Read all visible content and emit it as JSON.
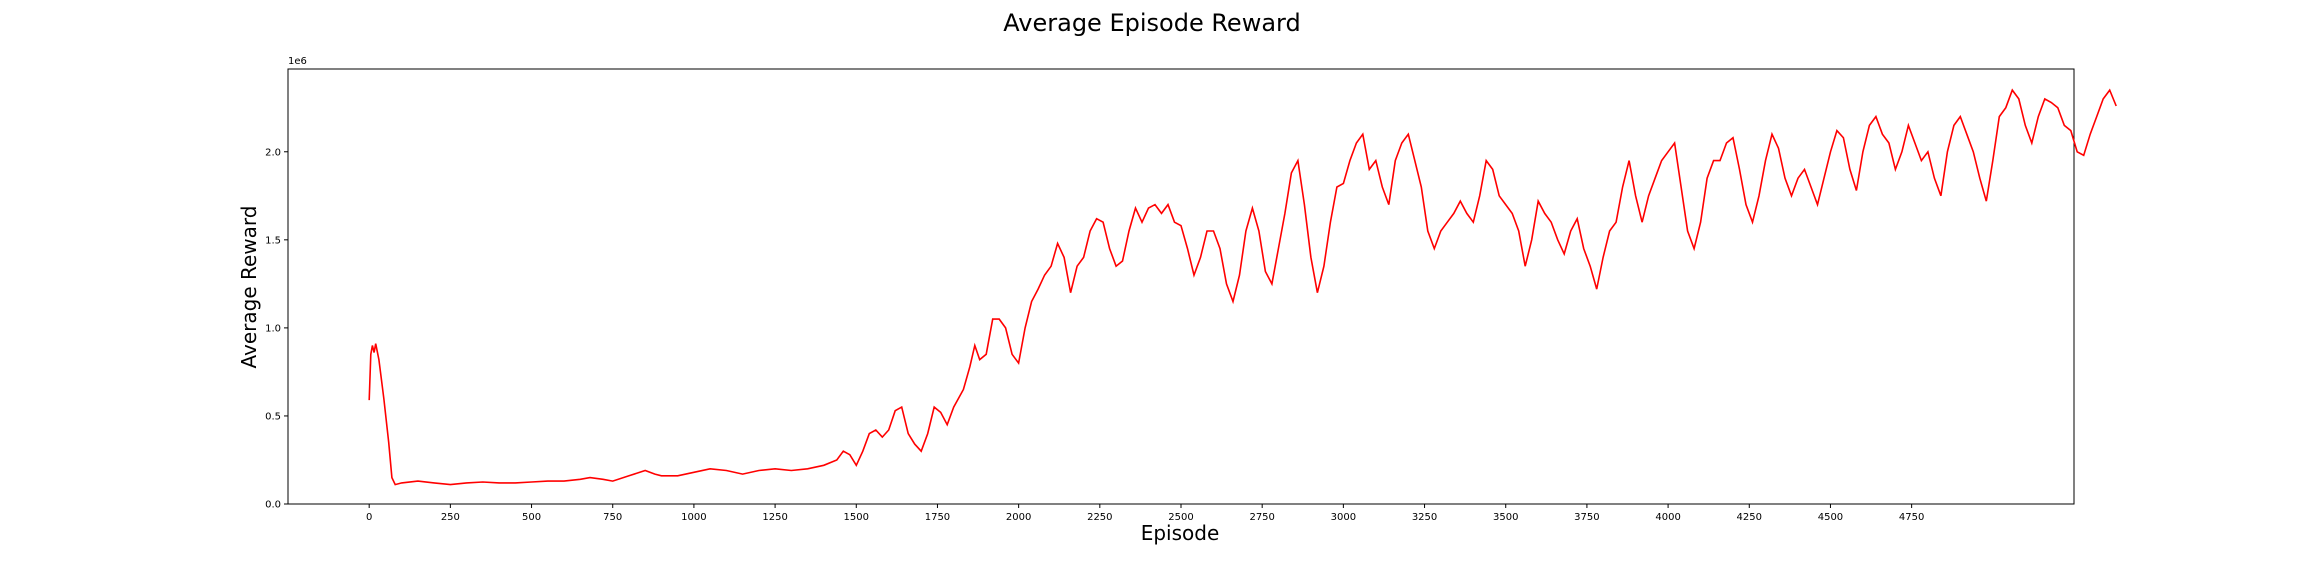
{
  "chart_data": {
    "type": "line",
    "title": "Average Episode Reward",
    "xlabel": "Episode",
    "ylabel": "Average Reward",
    "y_offset_label": "1e6",
    "xlim": [
      -250,
      5250
    ],
    "ylim": [
      0,
      2.47
    ],
    "y_scale_note": "values in units of 1e6",
    "x_ticks": [
      0,
      250,
      500,
      750,
      1000,
      1250,
      1500,
      1750,
      2000,
      2250,
      2500,
      2750,
      3000,
      3250,
      3500,
      3750,
      4000,
      4250,
      4500,
      4750
    ],
    "x_tick_labels": [
      "0",
      "250",
      "500",
      "750",
      "1000",
      "1250",
      "1500",
      "1750",
      "2000",
      "2250",
      "2500",
      "2750",
      "3000",
      "3250",
      "3500",
      "3750",
      "4000",
      "4250",
      "4500",
      "4750"
    ],
    "y_ticks": [
      0,
      0.5,
      1.0,
      1.5,
      2.0
    ],
    "y_tick_labels": [
      "0.0",
      "0.5",
      "1.0",
      "1.5",
      "2.0"
    ],
    "grid": false,
    "series": [
      {
        "color": "#ff0000",
        "points": [
          [
            0,
            0.59
          ],
          [
            5,
            0.85
          ],
          [
            10,
            0.9
          ],
          [
            15,
            0.86
          ],
          [
            20,
            0.91
          ],
          [
            30,
            0.82
          ],
          [
            45,
            0.6
          ],
          [
            60,
            0.35
          ],
          [
            70,
            0.15
          ],
          [
            80,
            0.11
          ],
          [
            100,
            0.12
          ],
          [
            150,
            0.13
          ],
          [
            200,
            0.12
          ],
          [
            250,
            0.11
          ],
          [
            300,
            0.12
          ],
          [
            350,
            0.125
          ],
          [
            400,
            0.12
          ],
          [
            450,
            0.12
          ],
          [
            500,
            0.125
          ],
          [
            550,
            0.13
          ],
          [
            600,
            0.13
          ],
          [
            650,
            0.14
          ],
          [
            680,
            0.15
          ],
          [
            720,
            0.14
          ],
          [
            750,
            0.13
          ],
          [
            800,
            0.16
          ],
          [
            850,
            0.19
          ],
          [
            880,
            0.17
          ],
          [
            900,
            0.16
          ],
          [
            950,
            0.16
          ],
          [
            1000,
            0.18
          ],
          [
            1050,
            0.2
          ],
          [
            1100,
            0.19
          ],
          [
            1150,
            0.17
          ],
          [
            1200,
            0.19
          ],
          [
            1250,
            0.2
          ],
          [
            1300,
            0.19
          ],
          [
            1350,
            0.2
          ],
          [
            1400,
            0.22
          ],
          [
            1440,
            0.25
          ],
          [
            1460,
            0.3
          ],
          [
            1480,
            0.28
          ],
          [
            1500,
            0.22
          ],
          [
            1520,
            0.3
          ],
          [
            1540,
            0.4
          ],
          [
            1560,
            0.42
          ],
          [
            1580,
            0.38
          ],
          [
            1600,
            0.42
          ],
          [
            1620,
            0.53
          ],
          [
            1640,
            0.55
          ],
          [
            1660,
            0.4
          ],
          [
            1680,
            0.34
          ],
          [
            1700,
            0.3
          ],
          [
            1720,
            0.4
          ],
          [
            1740,
            0.55
          ],
          [
            1760,
            0.52
          ],
          [
            1780,
            0.45
          ],
          [
            1800,
            0.55
          ],
          [
            1830,
            0.65
          ],
          [
            1850,
            0.78
          ],
          [
            1865,
            0.9
          ],
          [
            1880,
            0.82
          ],
          [
            1900,
            0.85
          ],
          [
            1920,
            1.05
          ],
          [
            1940,
            1.05
          ],
          [
            1960,
            1.0
          ],
          [
            1980,
            0.85
          ],
          [
            2000,
            0.8
          ],
          [
            2020,
            1.0
          ],
          [
            2040,
            1.15
          ],
          [
            2060,
            1.22
          ],
          [
            2080,
            1.3
          ],
          [
            2100,
            1.35
          ],
          [
            2120,
            1.48
          ],
          [
            2140,
            1.4
          ],
          [
            2160,
            1.2
          ],
          [
            2180,
            1.35
          ],
          [
            2200,
            1.4
          ],
          [
            2220,
            1.55
          ],
          [
            2240,
            1.62
          ],
          [
            2260,
            1.6
          ],
          [
            2280,
            1.45
          ],
          [
            2300,
            1.35
          ],
          [
            2320,
            1.38
          ],
          [
            2340,
            1.55
          ],
          [
            2360,
            1.68
          ],
          [
            2380,
            1.6
          ],
          [
            2400,
            1.68
          ],
          [
            2420,
            1.7
          ],
          [
            2440,
            1.65
          ],
          [
            2460,
            1.7
          ],
          [
            2480,
            1.6
          ],
          [
            2500,
            1.58
          ],
          [
            2520,
            1.45
          ],
          [
            2540,
            1.3
          ],
          [
            2560,
            1.4
          ],
          [
            2580,
            1.55
          ],
          [
            2600,
            1.55
          ],
          [
            2620,
            1.45
          ],
          [
            2640,
            1.25
          ],
          [
            2660,
            1.15
          ],
          [
            2680,
            1.3
          ],
          [
            2700,
            1.55
          ],
          [
            2720,
            1.68
          ],
          [
            2740,
            1.55
          ],
          [
            2760,
            1.32
          ],
          [
            2780,
            1.25
          ],
          [
            2800,
            1.45
          ],
          [
            2820,
            1.65
          ],
          [
            2840,
            1.88
          ],
          [
            2860,
            1.95
          ],
          [
            2880,
            1.7
          ],
          [
            2900,
            1.4
          ],
          [
            2920,
            1.2
          ],
          [
            2940,
            1.35
          ],
          [
            2960,
            1.6
          ],
          [
            2980,
            1.8
          ],
          [
            3000,
            1.82
          ],
          [
            3020,
            1.95
          ],
          [
            3040,
            2.05
          ],
          [
            3060,
            2.1
          ],
          [
            3080,
            1.9
          ],
          [
            3100,
            1.95
          ],
          [
            3120,
            1.8
          ],
          [
            3140,
            1.7
          ],
          [
            3160,
            1.95
          ],
          [
            3180,
            2.05
          ],
          [
            3200,
            2.1
          ],
          [
            3220,
            1.95
          ],
          [
            3240,
            1.8
          ],
          [
            3260,
            1.55
          ],
          [
            3280,
            1.45
          ],
          [
            3300,
            1.55
          ],
          [
            3320,
            1.6
          ],
          [
            3340,
            1.65
          ],
          [
            3360,
            1.72
          ],
          [
            3380,
            1.65
          ],
          [
            3400,
            1.6
          ],
          [
            3420,
            1.75
          ],
          [
            3440,
            1.95
          ],
          [
            3460,
            1.9
          ],
          [
            3480,
            1.75
          ],
          [
            3500,
            1.7
          ],
          [
            3520,
            1.65
          ],
          [
            3540,
            1.55
          ],
          [
            3560,
            1.35
          ],
          [
            3580,
            1.5
          ],
          [
            3600,
            1.72
          ],
          [
            3620,
            1.65
          ],
          [
            3640,
            1.6
          ],
          [
            3660,
            1.5
          ],
          [
            3680,
            1.42
          ],
          [
            3700,
            1.55
          ],
          [
            3720,
            1.62
          ],
          [
            3740,
            1.45
          ],
          [
            3760,
            1.35
          ],
          [
            3780,
            1.22
          ],
          [
            3800,
            1.4
          ],
          [
            3820,
            1.55
          ],
          [
            3840,
            1.6
          ],
          [
            3860,
            1.8
          ],
          [
            3880,
            1.95
          ],
          [
            3900,
            1.75
          ],
          [
            3920,
            1.6
          ],
          [
            3940,
            1.75
          ],
          [
            3960,
            1.85
          ],
          [
            3980,
            1.95
          ],
          [
            4000,
            2.0
          ],
          [
            4020,
            2.05
          ],
          [
            4040,
            1.8
          ],
          [
            4060,
            1.55
          ],
          [
            4080,
            1.45
          ],
          [
            4100,
            1.6
          ],
          [
            4120,
            1.85
          ],
          [
            4140,
            1.95
          ],
          [
            4160,
            1.95
          ],
          [
            4180,
            2.05
          ],
          [
            4200,
            2.08
          ],
          [
            4220,
            1.9
          ],
          [
            4240,
            1.7
          ],
          [
            4260,
            1.6
          ],
          [
            4280,
            1.75
          ],
          [
            4300,
            1.95
          ],
          [
            4320,
            2.1
          ],
          [
            4340,
            2.02
          ],
          [
            4360,
            1.85
          ],
          [
            4380,
            1.75
          ],
          [
            4400,
            1.85
          ],
          [
            4420,
            1.9
          ],
          [
            4440,
            1.8
          ],
          [
            4460,
            1.7
          ],
          [
            4480,
            1.85
          ],
          [
            4500,
            2.0
          ],
          [
            4520,
            2.12
          ],
          [
            4540,
            2.08
          ],
          [
            4560,
            1.9
          ],
          [
            4580,
            1.78
          ],
          [
            4600,
            2.0
          ],
          [
            4620,
            2.15
          ],
          [
            4640,
            2.2
          ],
          [
            4660,
            2.1
          ],
          [
            4680,
            2.05
          ],
          [
            4700,
            1.9
          ],
          [
            4720,
            2.0
          ],
          [
            4740,
            2.15
          ],
          [
            4760,
            2.05
          ],
          [
            4780,
            1.95
          ],
          [
            4800,
            2.0
          ],
          [
            4820,
            1.85
          ],
          [
            4840,
            1.75
          ],
          [
            4860,
            2.0
          ],
          [
            4880,
            2.15
          ],
          [
            4900,
            2.2
          ],
          [
            4920,
            2.1
          ],
          [
            4940,
            2.0
          ],
          [
            4960,
            1.85
          ],
          [
            4980,
            1.72
          ],
          [
            5000,
            1.95
          ],
          [
            5020,
            2.2
          ],
          [
            5040,
            2.25
          ],
          [
            5060,
            2.35
          ],
          [
            5080,
            2.3
          ],
          [
            5100,
            2.15
          ],
          [
            5120,
            2.05
          ],
          [
            5140,
            2.2
          ],
          [
            5160,
            2.3
          ],
          [
            5180,
            2.28
          ],
          [
            5200,
            2.25
          ],
          [
            5220,
            2.15
          ],
          [
            5240,
            2.12
          ],
          [
            5260,
            2.0
          ],
          [
            5280,
            1.98
          ],
          [
            5300,
            2.1
          ],
          [
            5320,
            2.2
          ],
          [
            5340,
            2.3
          ],
          [
            5360,
            2.35
          ],
          [
            5380,
            2.26
          ]
        ]
      }
    ]
  }
}
